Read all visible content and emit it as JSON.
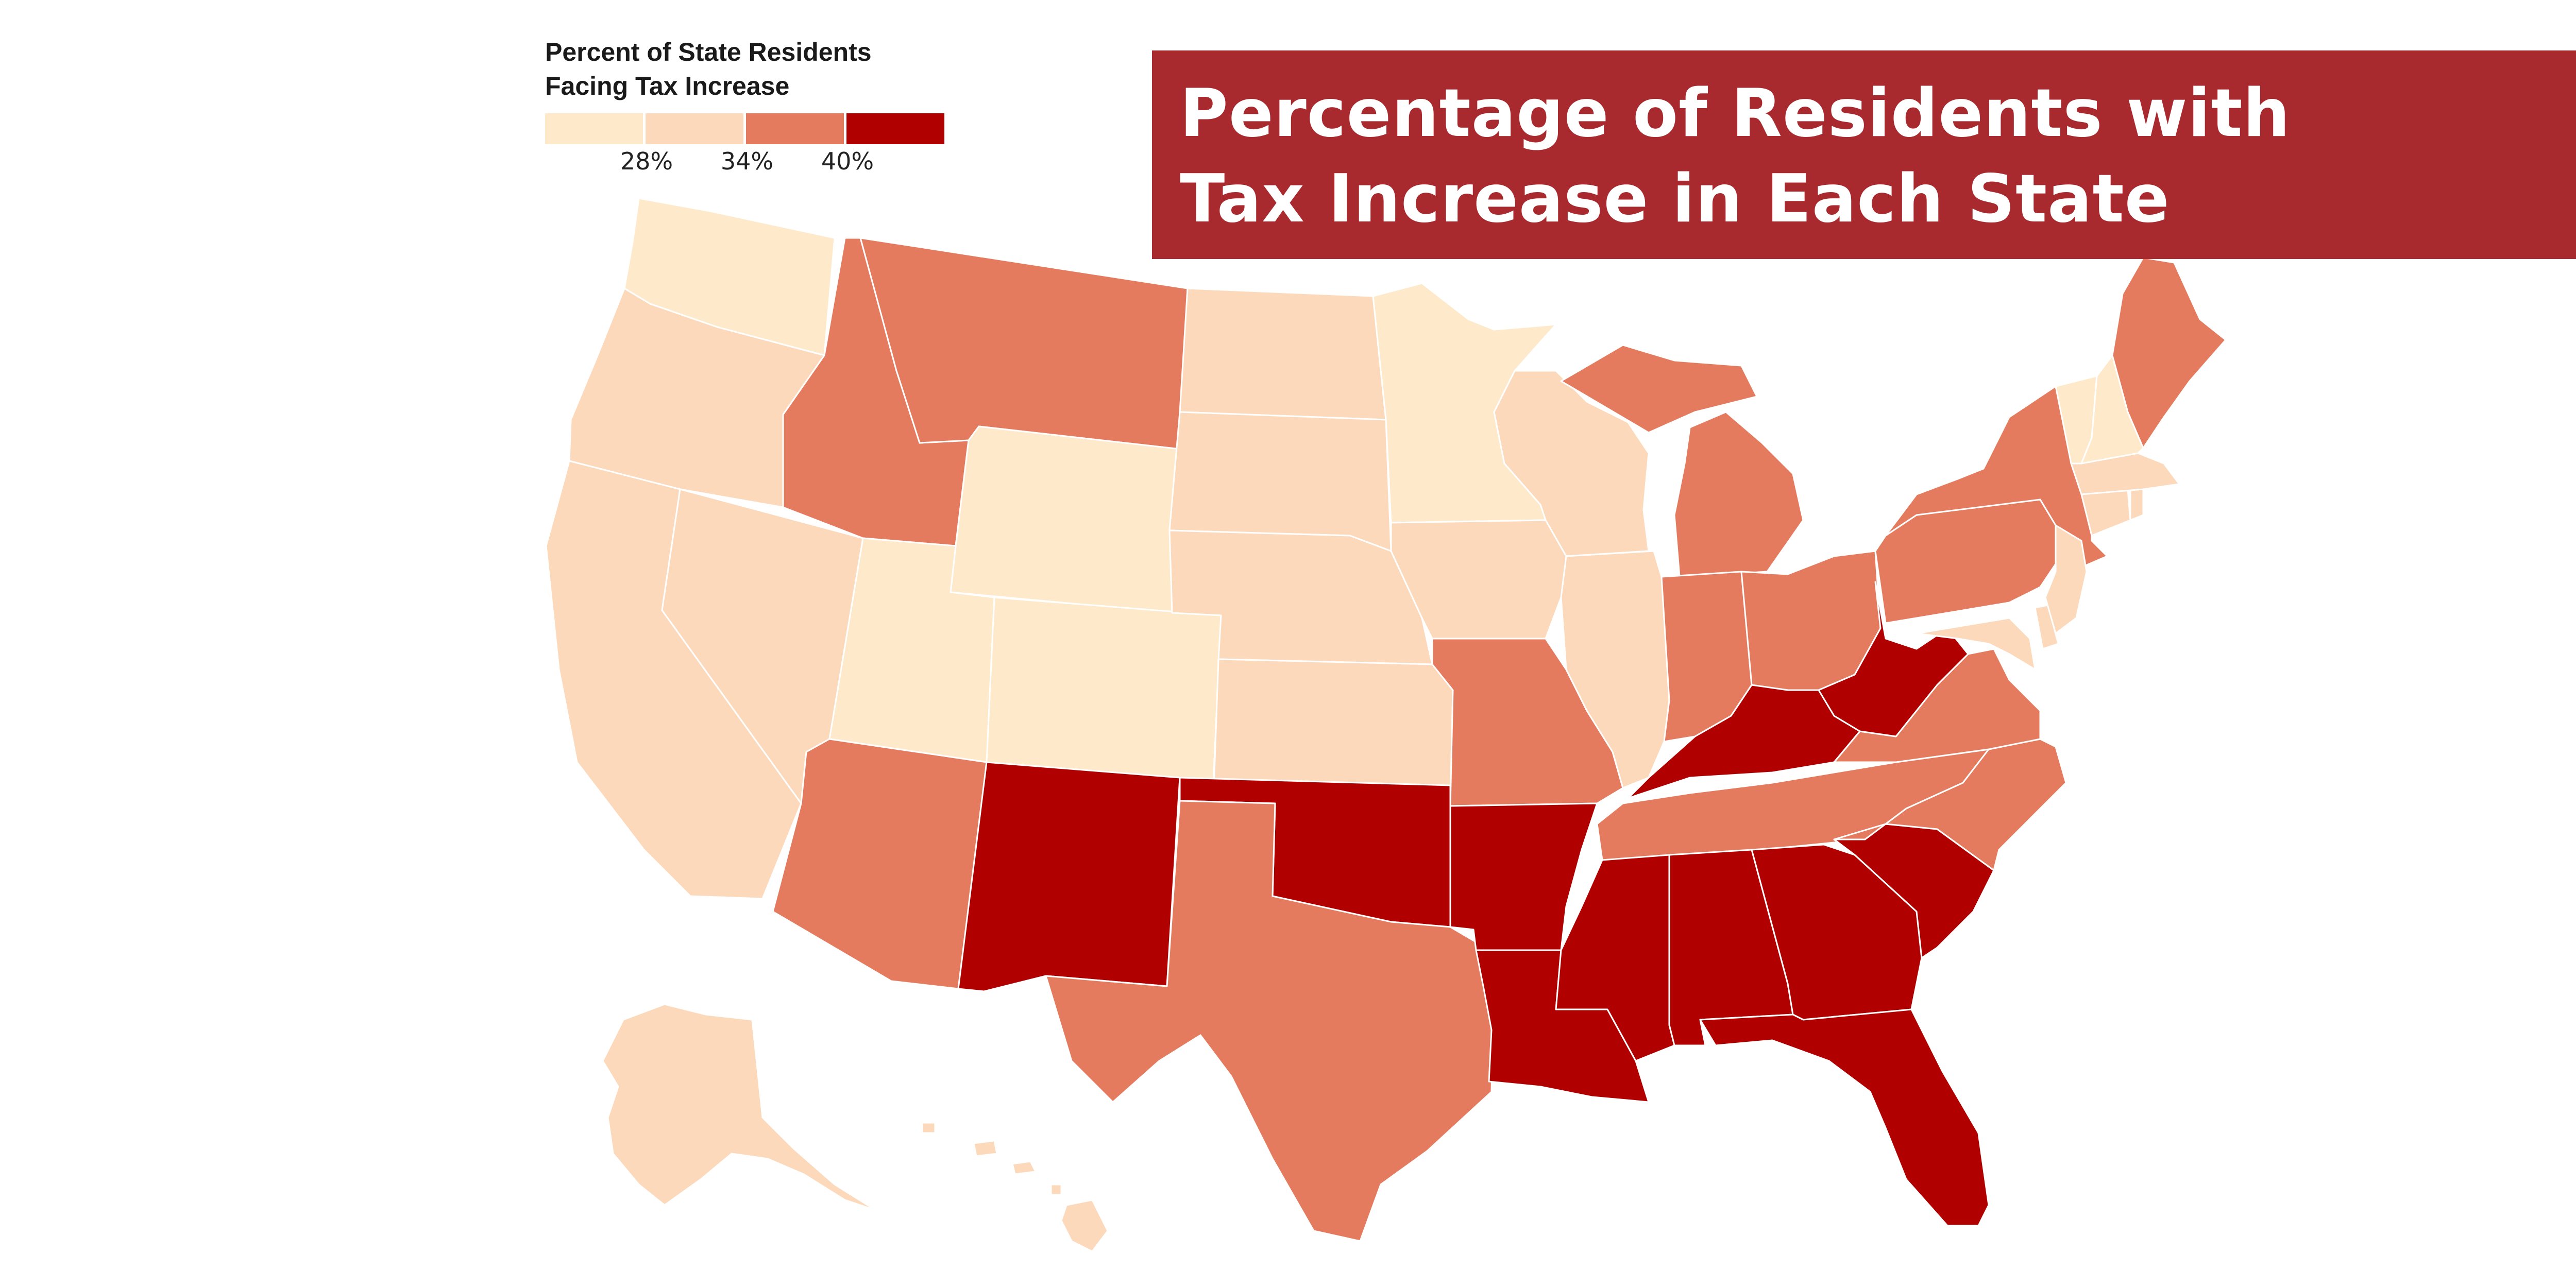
{
  "legend": {
    "title_line1": "Percent of State Residents",
    "title_line2": "Facing Tax Increase",
    "ticks": [
      "28%",
      "34%",
      "40%"
    ],
    "colors": [
      "#feeacb",
      "#fdd9bb",
      "#e57b5e",
      "#b10000"
    ]
  },
  "title": {
    "text": "Percentage of Residents with\nTax Increase in Each State",
    "background": "#a82a2e"
  },
  "states": [
    {
      "id": "WA",
      "bin": 0
    },
    {
      "id": "OR",
      "bin": 1
    },
    {
      "id": "CA",
      "bin": 1
    },
    {
      "id": "NV",
      "bin": 1
    },
    {
      "id": "ID",
      "bin": 2
    },
    {
      "id": "MT",
      "bin": 2
    },
    {
      "id": "WY",
      "bin": 0
    },
    {
      "id": "UT",
      "bin": 0
    },
    {
      "id": "CO",
      "bin": 0
    },
    {
      "id": "AZ",
      "bin": 2
    },
    {
      "id": "NM",
      "bin": 3
    },
    {
      "id": "ND",
      "bin": 1
    },
    {
      "id": "SD",
      "bin": 1
    },
    {
      "id": "NE",
      "bin": 1
    },
    {
      "id": "KS",
      "bin": 1
    },
    {
      "id": "OK",
      "bin": 3
    },
    {
      "id": "TX",
      "bin": 2
    },
    {
      "id": "MN",
      "bin": 0
    },
    {
      "id": "IA",
      "bin": 1
    },
    {
      "id": "MO",
      "bin": 2
    },
    {
      "id": "AR",
      "bin": 3
    },
    {
      "id": "LA",
      "bin": 3
    },
    {
      "id": "WI",
      "bin": 1
    },
    {
      "id": "IL",
      "bin": 1
    },
    {
      "id": "MI",
      "bin": 2
    },
    {
      "id": "IN",
      "bin": 2
    },
    {
      "id": "OH",
      "bin": 2
    },
    {
      "id": "KY",
      "bin": 3
    },
    {
      "id": "TN",
      "bin": 2
    },
    {
      "id": "MS",
      "bin": 3
    },
    {
      "id": "AL",
      "bin": 3
    },
    {
      "id": "GA",
      "bin": 3
    },
    {
      "id": "FL",
      "bin": 3
    },
    {
      "id": "SC",
      "bin": 3
    },
    {
      "id": "NC",
      "bin": 2
    },
    {
      "id": "VA",
      "bin": 2
    },
    {
      "id": "WV",
      "bin": 3
    },
    {
      "id": "PA",
      "bin": 2
    },
    {
      "id": "NY",
      "bin": 2
    },
    {
      "id": "MD",
      "bin": 1
    },
    {
      "id": "DE",
      "bin": 1
    },
    {
      "id": "NJ",
      "bin": 1
    },
    {
      "id": "CT",
      "bin": 1
    },
    {
      "id": "RI",
      "bin": 1
    },
    {
      "id": "MA",
      "bin": 1
    },
    {
      "id": "VT",
      "bin": 0
    },
    {
      "id": "NH",
      "bin": 0
    },
    {
      "id": "ME",
      "bin": 2
    },
    {
      "id": "AK",
      "bin": 1
    },
    {
      "id": "HI",
      "bin": 1
    }
  ]
}
